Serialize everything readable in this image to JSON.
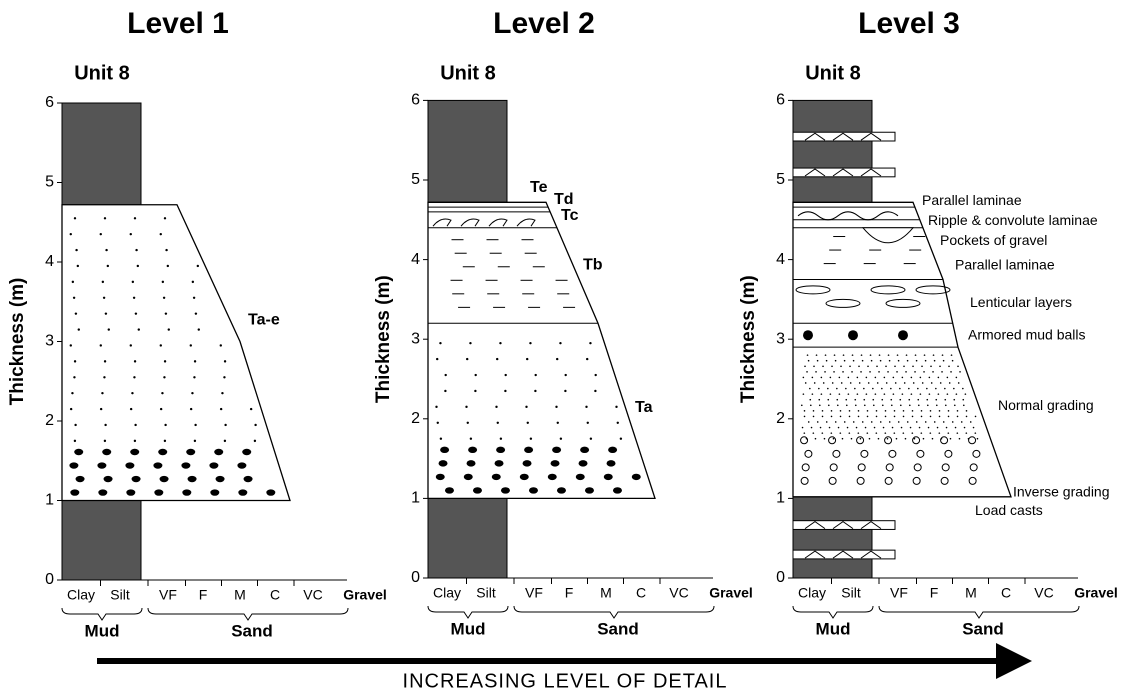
{
  "panels": [
    {
      "title": "Level 1",
      "unit": "Unit 8",
      "y_label": "Thickness (m)",
      "y_ticks": [
        0,
        1,
        2,
        3,
        4,
        5,
        6
      ],
      "grain_sizes": [
        "Clay",
        "Silt",
        "VF",
        "F",
        "M",
        "C",
        "VC",
        "Gravel"
      ],
      "groups": [
        "Mud",
        "Sand"
      ],
      "labels": [
        "Ta-e"
      ]
    },
    {
      "title": "Level 2",
      "unit": "Unit 8",
      "y_label": "Thickness (m)",
      "y_ticks": [
        0,
        1,
        2,
        3,
        4,
        5,
        6
      ],
      "grain_sizes": [
        "Clay",
        "Silt",
        "VF",
        "F",
        "M",
        "C",
        "VC",
        "Gravel"
      ],
      "groups": [
        "Mud",
        "Sand"
      ],
      "labels": [
        "Te",
        "Td",
        "Tc",
        "Tb",
        "Ta"
      ]
    },
    {
      "title": "Level 3",
      "unit": "Unit 8",
      "y_label": "Thickness (m)",
      "y_ticks": [
        0,
        1,
        2,
        3,
        4,
        5,
        6
      ],
      "grain_sizes": [
        "Clay",
        "Silt",
        "VF",
        "F",
        "M",
        "C",
        "VC",
        "Gravel"
      ],
      "groups": [
        "Mud",
        "Sand"
      ],
      "labels": [
        "Parallel laminae",
        "Ripple & convolute laminae",
        "Pockets of gravel",
        "Parallel laminae",
        "Lenticular layers",
        "Armored mud balls",
        "Normal grading",
        "Inverse grading",
        "Load casts"
      ]
    }
  ],
  "arrow_label": "INCREASING LEVEL OF DETAIL"
}
